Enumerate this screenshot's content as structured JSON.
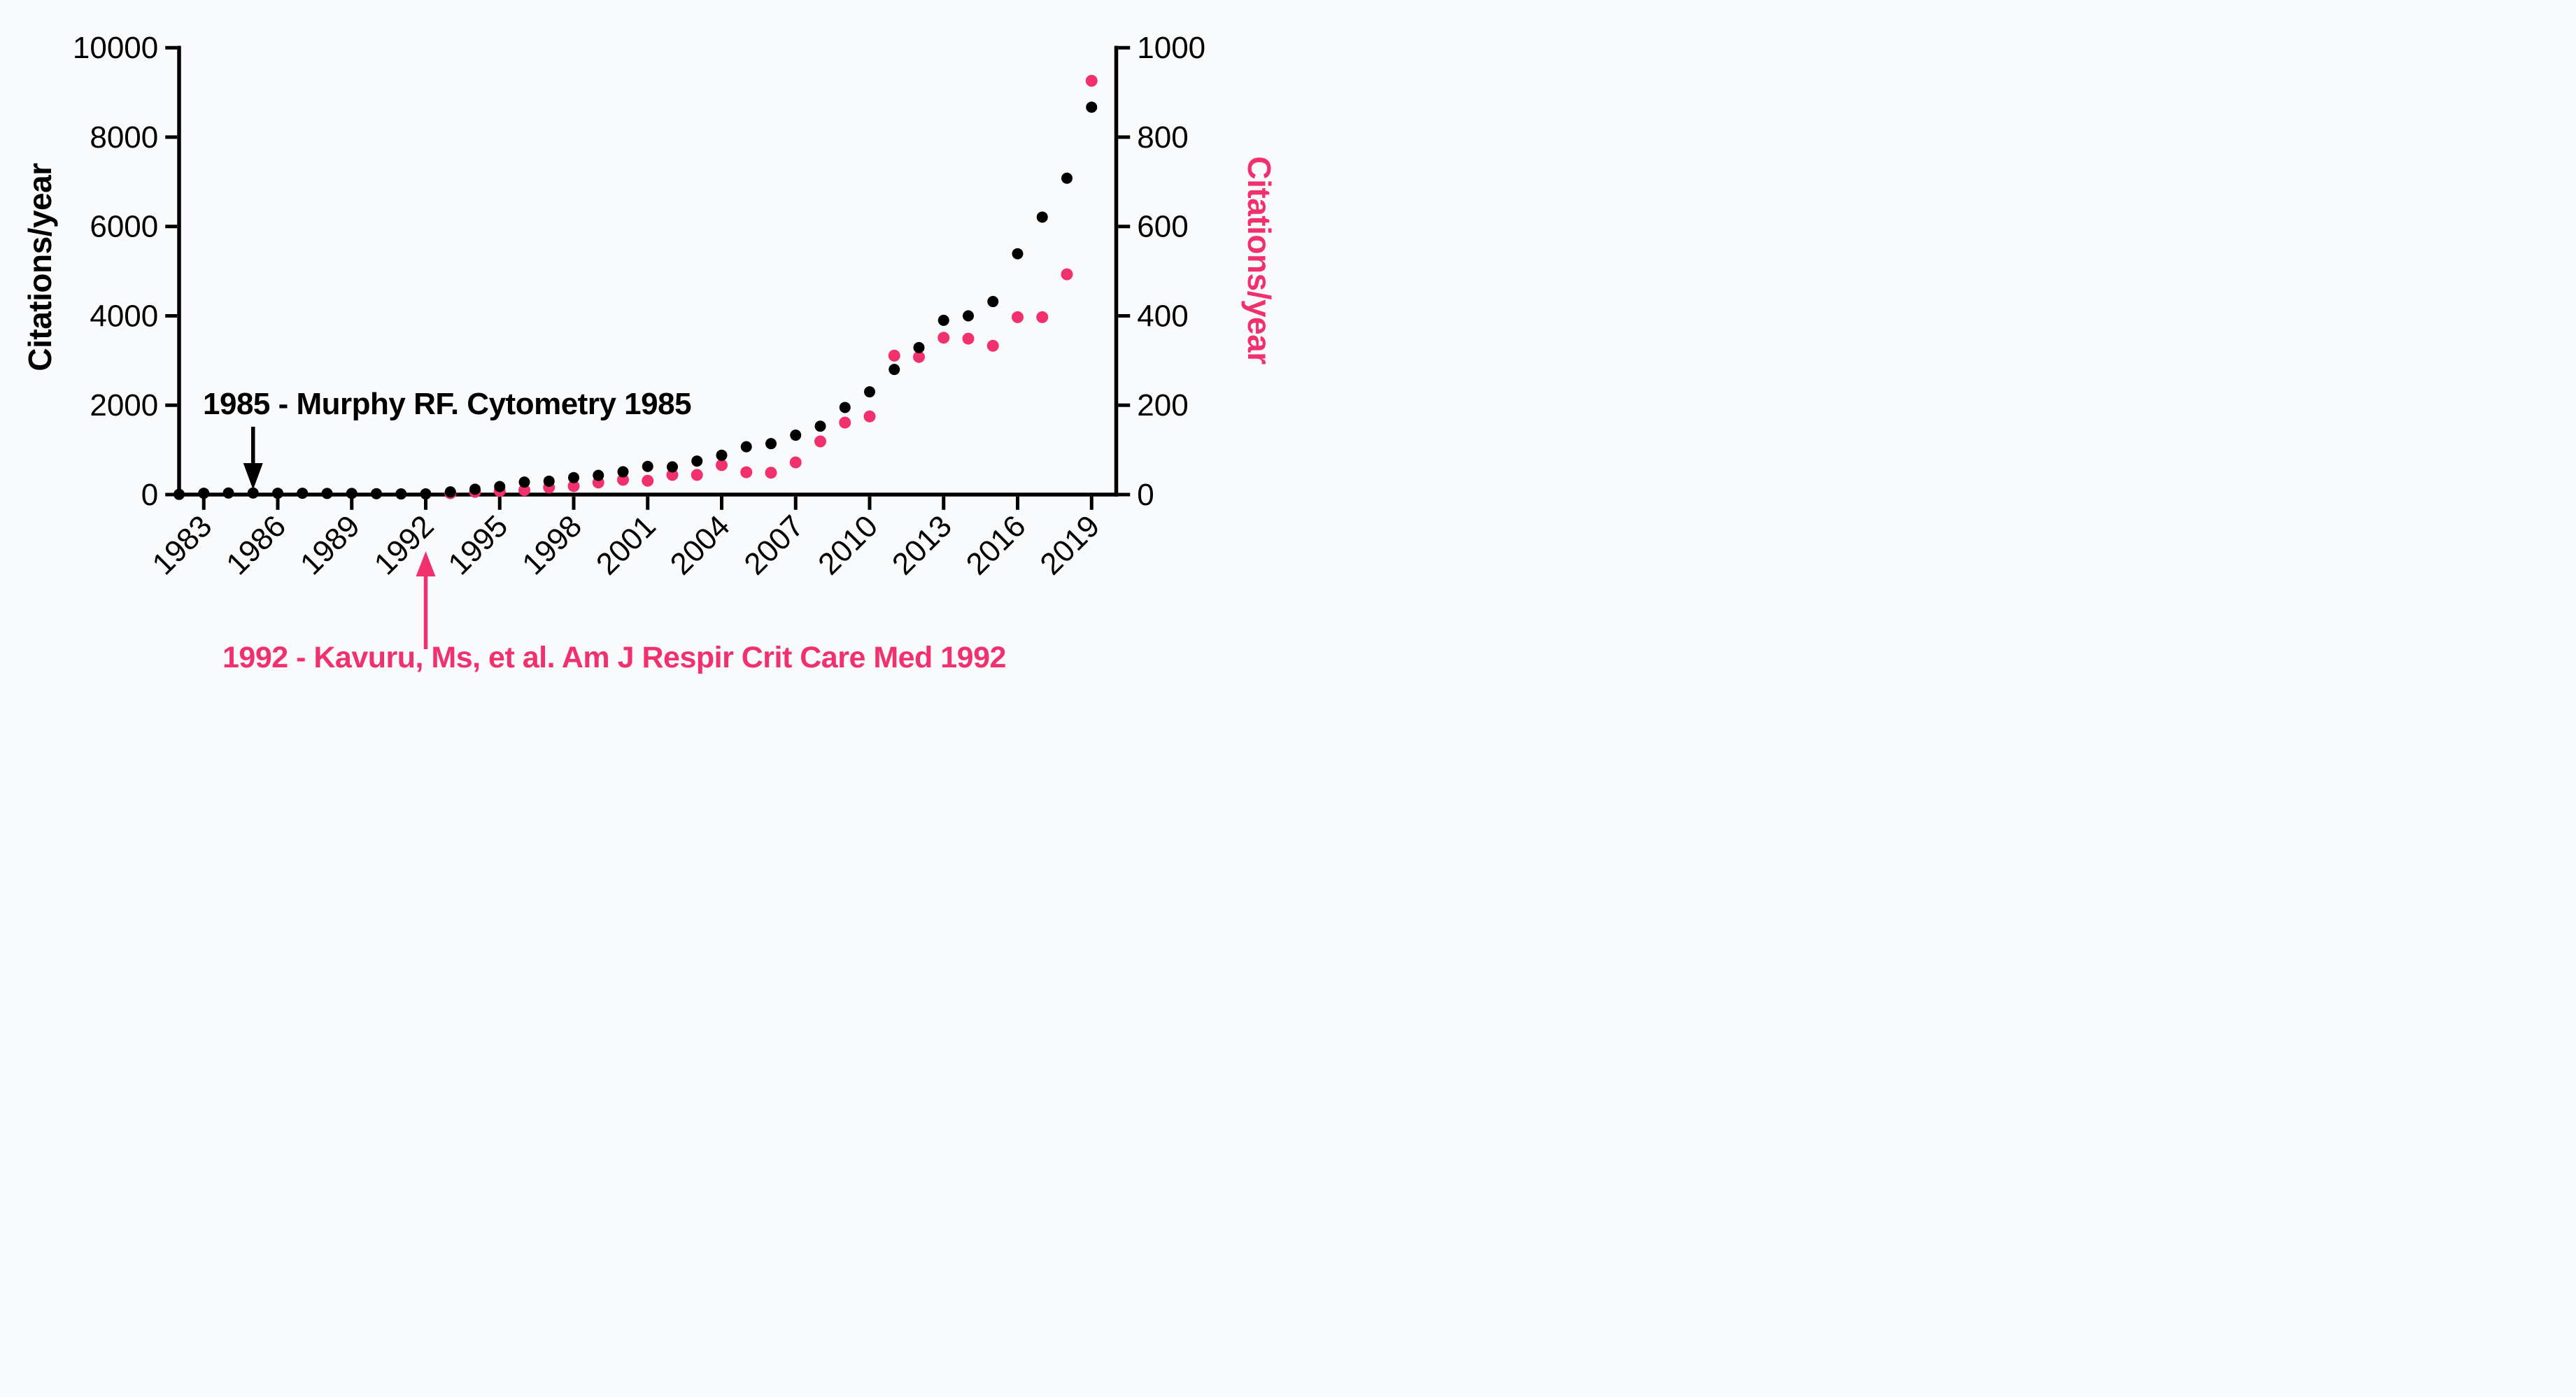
{
  "figure": {
    "background_color": "#f9fafb",
    "accent_pink": "#f1316e",
    "accent_black": "#000000"
  },
  "chart_data": {
    "type": "scatter",
    "title": "",
    "grid": false,
    "legend": "none (series identified by colored annotations)",
    "x_axis": {
      "label": "",
      "range": [
        1982,
        2020
      ],
      "tick_years": [
        "1983",
        "1986",
        "1989",
        "1992",
        "1995",
        "1998",
        "2001",
        "2004",
        "2007",
        "2010",
        "2013",
        "2016",
        "2019"
      ],
      "tick_label_rotation_deg": -45
    },
    "left_axis": {
      "title": "Citations/year",
      "color": "#000000",
      "range": [
        0,
        10000
      ],
      "ticks": [
        "0",
        "2000",
        "4000",
        "6000",
        "8000",
        "10000"
      ]
    },
    "right_axis": {
      "title": "Citations/year",
      "color": "#f1316e",
      "range": [
        0,
        1000
      ],
      "ticks": [
        "0",
        "200",
        "400",
        "600",
        "800",
        "1000"
      ]
    },
    "series": [
      {
        "name": "Murphy RF. Cytometry 1985",
        "color": "#000000",
        "axis": "left",
        "points": [
          {
            "year": 1982,
            "value": 5
          },
          {
            "year": 1983,
            "value": 30
          },
          {
            "year": 1984,
            "value": 35
          },
          {
            "year": 1985,
            "value": 35
          },
          {
            "year": 1986,
            "value": 30
          },
          {
            "year": 1987,
            "value": 30
          },
          {
            "year": 1988,
            "value": 25
          },
          {
            "year": 1989,
            "value": 25
          },
          {
            "year": 1990,
            "value": 20
          },
          {
            "year": 1991,
            "value": 15
          },
          {
            "year": 1992,
            "value": 15
          },
          {
            "year": 1993,
            "value": 60
          },
          {
            "year": 1994,
            "value": 120
          },
          {
            "year": 1995,
            "value": 180
          },
          {
            "year": 1996,
            "value": 280
          },
          {
            "year": 1997,
            "value": 300
          },
          {
            "year": 1998,
            "value": 380
          },
          {
            "year": 1999,
            "value": 430
          },
          {
            "year": 2000,
            "value": 510
          },
          {
            "year": 2001,
            "value": 630
          },
          {
            "year": 2002,
            "value": 620
          },
          {
            "year": 2003,
            "value": 750
          },
          {
            "year": 2004,
            "value": 880
          },
          {
            "year": 2005,
            "value": 1070
          },
          {
            "year": 2006,
            "value": 1140
          },
          {
            "year": 2007,
            "value": 1330
          },
          {
            "year": 2008,
            "value": 1530
          },
          {
            "year": 2009,
            "value": 1950
          },
          {
            "year": 2010,
            "value": 2300
          },
          {
            "year": 2011,
            "value": 2800
          },
          {
            "year": 2012,
            "value": 3290
          },
          {
            "year": 2013,
            "value": 3900
          },
          {
            "year": 2014,
            "value": 4000
          },
          {
            "year": 2015,
            "value": 4320
          },
          {
            "year": 2016,
            "value": 5390
          },
          {
            "year": 2017,
            "value": 6210
          },
          {
            "year": 2018,
            "value": 7080
          },
          {
            "year": 2019,
            "value": 8670
          }
        ]
      },
      {
        "name": "Kavuru, Ms, et al. Am J Respir Crit Care Med 1992",
        "color": "#f1316e",
        "axis": "right",
        "points": [
          {
            "year": 1993,
            "value": 3
          },
          {
            "year": 1994,
            "value": 6
          },
          {
            "year": 1995,
            "value": 8
          },
          {
            "year": 1996,
            "value": 10
          },
          {
            "year": 1997,
            "value": 16
          },
          {
            "year": 1998,
            "value": 19
          },
          {
            "year": 1999,
            "value": 27
          },
          {
            "year": 2000,
            "value": 33
          },
          {
            "year": 2001,
            "value": 31
          },
          {
            "year": 2002,
            "value": 44
          },
          {
            "year": 2003,
            "value": 44
          },
          {
            "year": 2004,
            "value": 66
          },
          {
            "year": 2005,
            "value": 50
          },
          {
            "year": 2006,
            "value": 49
          },
          {
            "year": 2007,
            "value": 72
          },
          {
            "year": 2008,
            "value": 119
          },
          {
            "year": 2009,
            "value": 161
          },
          {
            "year": 2010,
            "value": 175
          },
          {
            "year": 2011,
            "value": 311
          },
          {
            "year": 2012,
            "value": 308
          },
          {
            "year": 2013,
            "value": 351
          },
          {
            "year": 2014,
            "value": 349
          },
          {
            "year": 2015,
            "value": 333
          },
          {
            "year": 2016,
            "value": 397
          },
          {
            "year": 2017,
            "value": 397
          },
          {
            "year": 2018,
            "value": 493
          },
          {
            "year": 2019,
            "value": 926
          }
        ]
      }
    ],
    "annotations": [
      {
        "id": "murphy",
        "text": "1985 - Murphy RF. Cytometry 1985",
        "year": 1985,
        "color": "#000000",
        "arrow_direction": "down"
      },
      {
        "id": "kavuru",
        "text": "1992 - Kavuru, Ms, et al. Am J Respir Crit Care Med 1992",
        "year": 1992,
        "color": "#f1316e",
        "arrow_direction": "up"
      }
    ]
  }
}
